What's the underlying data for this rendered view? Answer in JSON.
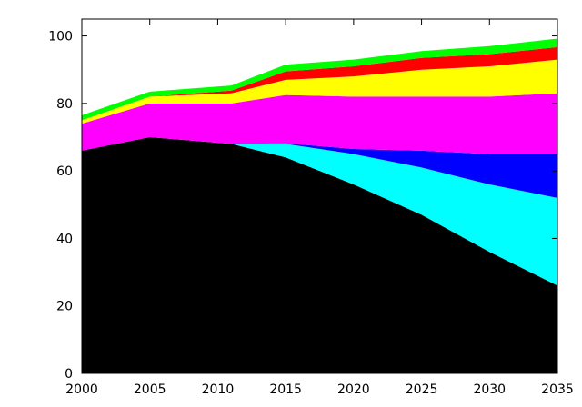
{
  "chart_data": {
    "type": "area",
    "title": "",
    "xlabel": "",
    "ylabel": "",
    "stacked": true,
    "x": [
      2000,
      2005,
      2011,
      2015,
      2020,
      2025,
      2030,
      2035
    ],
    "xlim": [
      2000,
      2035
    ],
    "ylim": [
      0,
      105
    ],
    "x_ticks": [
      2000,
      2005,
      2010,
      2015,
      2020,
      2025,
      2030,
      2035
    ],
    "y_ticks": [
      0,
      20,
      40,
      60,
      80,
      100
    ],
    "grid": false,
    "legend": "none",
    "series": [
      {
        "color": "#000000",
        "values": [
          66,
          70,
          68,
          64,
          56,
          47,
          36,
          26
        ]
      },
      {
        "color": "#00ffff",
        "values": [
          0,
          0,
          0,
          4,
          9,
          14,
          20,
          26
        ]
      },
      {
        "color": "#0000ff",
        "values": [
          0,
          0,
          0,
          0.2,
          1.5,
          5,
          9,
          13
        ]
      },
      {
        "color": "#ff00ff",
        "values": [
          8,
          10,
          12,
          14.3,
          15.5,
          16,
          17,
          18
        ]
      },
      {
        "color": "#ffff00",
        "values": [
          1,
          2,
          3,
          4.5,
          6,
          8,
          9,
          10
        ]
      },
      {
        "color": "#ff0000",
        "values": [
          0,
          0,
          0.8,
          2.5,
          3,
          3.5,
          3.6,
          3.7
        ]
      },
      {
        "color": "#00ff00",
        "values": [
          1.5,
          1.5,
          1.5,
          2,
          2,
          2,
          2.4,
          2.5
        ]
      }
    ]
  }
}
